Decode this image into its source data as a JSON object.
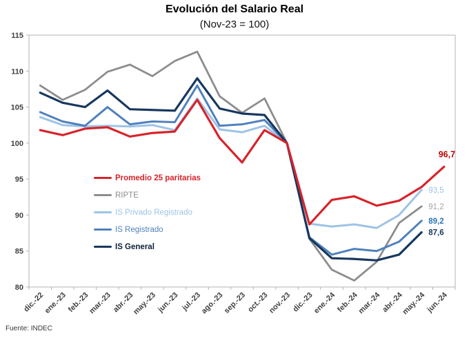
{
  "page": {
    "source": "Fuente: INDEC"
  },
  "chart_data": {
    "type": "line",
    "title": "Evolución del Salario Real",
    "subtitle": "(Nov-23 = 100)",
    "base_note": "Nov-23 = 100",
    "xlabel": "",
    "ylabel": "",
    "ylim": [
      80,
      115
    ],
    "ytick_step": 5,
    "grid": false,
    "legend_position": "inside-left",
    "axis_color": "#b3b3b3",
    "tick_label_color": "#3f3f3f",
    "categories": [
      "dic.-22",
      "ene.-23",
      "feb.-23",
      "mar.-23",
      "abr.-23",
      "may.-23",
      "jun.-23",
      "jul.-23",
      "ago.-23",
      "sep.-23",
      "oct.-23",
      "nov.-23",
      "dic.-23",
      "ene.-24",
      "feb.-24",
      "mar.-24",
      "abr.-24",
      "may.-24",
      "jun.-24"
    ],
    "series": [
      {
        "name": "RIPTE",
        "color": "#8c8c8c",
        "label_color": "#a3a3a3",
        "end_label": "91,2",
        "legend_bold": false,
        "label_bold": false,
        "label_pos": "right",
        "width": 2.8,
        "z": 1,
        "values": [
          108.0,
          106.0,
          107.4,
          109.9,
          110.9,
          109.3,
          111.4,
          112.7,
          106.5,
          104.2,
          106.2,
          100.0,
          86.7,
          82.4,
          80.9,
          83.5,
          88.9,
          91.2,
          null
        ]
      },
      {
        "name": "IS Privado Registrado",
        "color": "#9dc3e6",
        "label_color": "#9dc3e6",
        "end_label": "93,5",
        "legend_bold": false,
        "label_bold": false,
        "label_pos": "right",
        "width": 3,
        "z": 2,
        "values": [
          103.6,
          102.5,
          102.3,
          102.4,
          102.3,
          102.5,
          101.8,
          106.2,
          101.9,
          101.5,
          102.4,
          100.0,
          88.8,
          88.4,
          88.7,
          88.2,
          90.0,
          93.5,
          null
        ]
      },
      {
        "name": "IS Registrado",
        "color": "#4f81bd",
        "label_color": "#2e74b5",
        "end_label": "89,2",
        "legend_bold": false,
        "label_bold": true,
        "label_pos": "right",
        "width": 3,
        "z": 3,
        "values": [
          104.3,
          103.0,
          102.4,
          105.0,
          102.6,
          103.0,
          102.9,
          108.0,
          102.4,
          102.6,
          103.2,
          100.0,
          86.9,
          84.5,
          85.3,
          85.0,
          86.3,
          89.2,
          null
        ]
      },
      {
        "name": "IS General",
        "color": "#17375e",
        "label_color": "#17375e",
        "end_label": "87,6",
        "legend_bold": true,
        "label_bold": true,
        "label_pos": "right",
        "width": 3.2,
        "z": 4,
        "values": [
          107.0,
          105.6,
          105.0,
          107.3,
          104.7,
          104.6,
          104.5,
          109.0,
          104.8,
          104.1,
          103.9,
          100.0,
          86.8,
          84.0,
          83.9,
          83.7,
          84.5,
          87.6,
          null
        ]
      },
      {
        "name": "Promedio 25 paritarias",
        "color": "#d8232a",
        "label_color": "#c00000",
        "end_label": "96,7",
        "legend_bold": true,
        "label_bold": true,
        "label_pos": "above",
        "width": 3.2,
        "z": 5,
        "values": [
          101.8,
          101.1,
          102.0,
          102.2,
          100.9,
          101.4,
          101.6,
          106.0,
          100.7,
          97.3,
          101.8,
          100.0,
          88.7,
          92.1,
          92.6,
          91.3,
          92.0,
          93.9,
          96.7
        ]
      }
    ],
    "legend_order": [
      "Promedio 25 paritarias",
      "RIPTE",
      "IS Privado Registrado",
      "IS Registrado",
      "IS General"
    ]
  }
}
